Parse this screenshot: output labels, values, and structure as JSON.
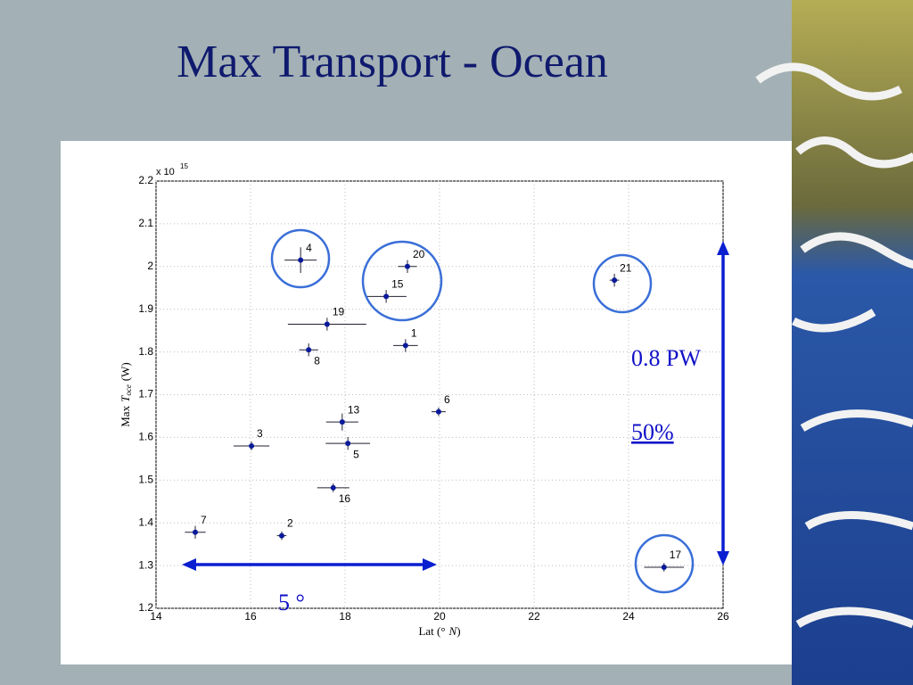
{
  "chart_data": {
    "type": "scatter",
    "title": "Max Transport - Ocean",
    "xlabel": {
      "text": "Lat (°",
      "symbol": "N",
      "close": ")"
    },
    "ylabel": {
      "prefix": "Max",
      "symbol": "T",
      "subscript": "oce",
      "unit": "(W)"
    },
    "y_multiplier": "x 10",
    "y_multiplier_exp": "15",
    "xlim": [
      14,
      26
    ],
    "xticks": [
      14,
      16,
      18,
      20,
      22,
      24,
      26
    ],
    "ylim": [
      1.2,
      2.2
    ],
    "yticks": [
      1.2,
      1.3,
      1.4,
      1.5,
      1.6,
      1.7,
      1.8,
      1.9,
      2,
      2.1,
      2.2
    ],
    "grid": true,
    "series": [
      {
        "color": "#0a1a9a",
        "labels": [
          "1",
          "2",
          "3",
          "4",
          "5",
          "6",
          "7",
          "8",
          "13",
          "15",
          "16",
          "17",
          "19",
          "20",
          "21"
        ],
        "x": [
          19.28,
          16.66,
          16.02,
          17.06,
          18.06,
          19.98,
          14.83,
          17.23,
          17.94,
          18.87,
          17.75,
          24.75,
          17.62,
          19.32,
          23.7
        ],
        "y": [
          1.815,
          1.37,
          1.58,
          2.015,
          1.586,
          1.66,
          1.378,
          1.805,
          1.636,
          1.93,
          1.482,
          1.296,
          1.865,
          2.0,
          1.968
        ],
        "xerr": [
          0.26,
          0.1,
          0.38,
          0.34,
          0.47,
          0.15,
          0.22,
          0.2,
          0.34,
          0.43,
          0.34,
          0.42,
          0.83,
          0.2,
          0.1
        ],
        "yerr": [
          0.015,
          0.01,
          0.01,
          0.03,
          0.015,
          0.01,
          0.015,
          0.015,
          0.02,
          0.015,
          0.01,
          0.01,
          0.015,
          0.015,
          0.015
        ]
      }
    ],
    "annotations": {
      "range": "0.8 PW",
      "percent": "50%",
      "lat_span": "5 °"
    }
  }
}
